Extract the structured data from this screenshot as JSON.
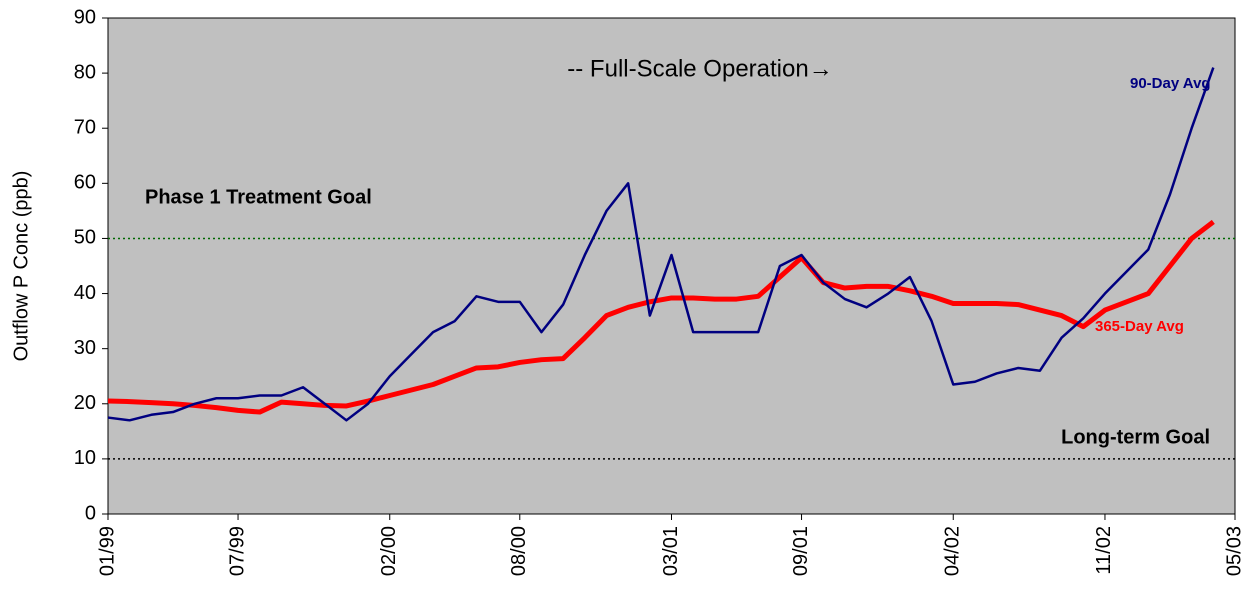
{
  "chart_data": {
    "type": "line",
    "y_label": "Outflow P Conc (ppb)",
    "annotation": "-- Full-Scale Operation→",
    "x": [
      "1999-01",
      "1999-02",
      "1999-03",
      "1999-04",
      "1999-05",
      "1999-06",
      "1999-07",
      "1999-08",
      "1999-09",
      "1999-10",
      "1999-11",
      "1999-12",
      "2000-01",
      "2000-02",
      "2000-03",
      "2000-04",
      "2000-05",
      "2000-06",
      "2000-07",
      "2000-08",
      "2000-09",
      "2000-10",
      "2000-11",
      "2000-12",
      "2001-01",
      "2001-02",
      "2001-03",
      "2001-04",
      "2001-05",
      "2001-06",
      "2001-07",
      "2001-08",
      "2001-09",
      "2001-10",
      "2001-11",
      "2001-12",
      "2002-01",
      "2002-02",
      "2002-03",
      "2002-04",
      "2002-05",
      "2002-06",
      "2002-07",
      "2002-08",
      "2002-09",
      "2002-10",
      "2002-11",
      "2002-12",
      "2003-01",
      "2003-02",
      "2003-03",
      "2003-04"
    ],
    "series": [
      {
        "name": "90-Day Avg",
        "color": "#000080",
        "values": [
          17.5,
          17,
          18,
          18.5,
          20,
          21,
          21,
          21.5,
          21.5,
          23,
          20,
          17,
          20,
          25,
          29,
          33,
          35,
          39.5,
          38.5,
          38.5,
          33,
          38,
          47,
          55,
          60,
          36,
          47,
          33,
          33,
          33,
          33,
          45,
          47,
          42,
          39,
          37.5,
          40,
          43,
          35,
          23.5,
          24,
          25.5,
          26.5,
          26,
          32,
          35.5,
          40,
          44,
          48,
          58,
          70,
          81
        ]
      },
      {
        "name": "365-Day Avg",
        "color": "#ff0000",
        "values": [
          20.5,
          20.4,
          20.2,
          20,
          19.7,
          19.3,
          18.8,
          18.5,
          20.3,
          20,
          19.7,
          19.6,
          20.5,
          21.5,
          22.5,
          23.5,
          25,
          26.5,
          26.7,
          27.5,
          28,
          28.2,
          32,
          36,
          37.5,
          38.5,
          39.2,
          39.2,
          39,
          39,
          39.5,
          43,
          46.5,
          42,
          41,
          41.3,
          41.3,
          40.5,
          39.5,
          38.2,
          38.2,
          38.2,
          38,
          37,
          36,
          34,
          37,
          38.5,
          40,
          45,
          50,
          53
        ]
      }
    ],
    "reference_lines": [
      {
        "value": 50,
        "label": "Phase 1 Treatment Goal",
        "color": "#006600"
      },
      {
        "value": 10,
        "label": "Long-term Goal",
        "color": "#000000"
      }
    ],
    "xlim": [
      "1999-01",
      "2003-05"
    ],
    "xticks": [
      {
        "value": "1999-01",
        "label": "01/99"
      },
      {
        "value": "1999-07",
        "label": "07/99"
      },
      {
        "value": "2000-02",
        "label": "02/00"
      },
      {
        "value": "2000-08",
        "label": "08/00"
      },
      {
        "value": "2001-03",
        "label": "03/01"
      },
      {
        "value": "2001-09",
        "label": "09/01"
      },
      {
        "value": "2002-04",
        "label": "04/02"
      },
      {
        "value": "2002-11",
        "label": "11/02"
      },
      {
        "value": "2003-05",
        "label": "05/03"
      }
    ],
    "ylim": [
      0,
      90
    ],
    "yticks": [
      0,
      10,
      20,
      30,
      40,
      50,
      60,
      70,
      80,
      90
    ],
    "background": "#c0c0c0"
  }
}
